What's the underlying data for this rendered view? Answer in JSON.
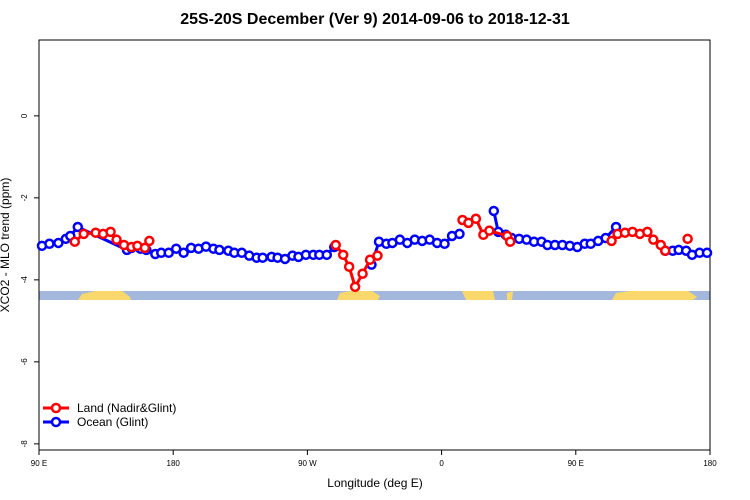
{
  "chart_data": {
    "type": "line",
    "title": "25S-20S December (Ver 9)   2014-09-06 to 2018-12-31",
    "xlabel": "Longitude (deg E)",
    "ylabel": "XCO2 - MLO trend (ppm)",
    "xlim": [
      90,
      540
    ],
    "ylim": [
      -8.15,
      1.85
    ],
    "xticks": [
      {
        "value": 90,
        "label": "90 E"
      },
      {
        "value": 180,
        "label": "180"
      },
      {
        "value": 270,
        "label": "90 W"
      },
      {
        "value": 360,
        "label": "0"
      },
      {
        "value": 450,
        "label": "90 E"
      },
      {
        "value": 540,
        "label": "180"
      }
    ],
    "yticks": [
      0,
      -2,
      -4,
      -6,
      -8
    ],
    "legend": "bottom-left",
    "series": [
      {
        "name": "Land (Nadir&Glint)",
        "color": "#ff0000",
        "x": [
          114,
          120,
          128,
          133,
          138,
          142,
          147,
          152,
          156,
          161,
          164,
          null,
          289,
          294,
          298,
          302,
          307,
          312,
          317,
          null,
          374,
          378,
          383,
          388,
          392,
          404,
          406,
          null,
          474,
          478,
          483,
          488,
          493,
          498,
          502,
          507,
          510,
          null,
          525
        ],
        "values": [
          -3.07,
          -2.88,
          -2.85,
          -2.88,
          -2.83,
          -3.02,
          -3.15,
          -3.2,
          -3.17,
          -3.22,
          -3.05,
          null,
          -3.15,
          -3.39,
          -3.68,
          -4.17,
          -3.85,
          -3.51,
          -3.41,
          null,
          -2.54,
          -2.61,
          -2.51,
          -2.9,
          -2.8,
          -2.93,
          -3.07,
          null,
          -3.05,
          -2.88,
          -2.85,
          -2.83,
          -2.88,
          -2.83,
          -3.02,
          -3.15,
          -3.29,
          null,
          -3.0
        ]
      },
      {
        "name": "Ocean (Glint)",
        "color": "#0000ff",
        "x": [
          92,
          97,
          103,
          108,
          111,
          116,
          149,
          152,
          158,
          162,
          168,
          172,
          177,
          182,
          187,
          192,
          197,
          202,
          207,
          211,
          217,
          221,
          226,
          231,
          236,
          240,
          246,
          250,
          255,
          260,
          264,
          269,
          274,
          278,
          283,
          288,
          null,
          313,
          318,
          323,
          327,
          332,
          337,
          342,
          347,
          352,
          357,
          362,
          367,
          372,
          null,
          395,
          398,
          403,
          407,
          412,
          417,
          422,
          427,
          431,
          436,
          441,
          446,
          451,
          456,
          460,
          465,
          470,
          477,
          null,
          510,
          515,
          519,
          524,
          528,
          533,
          538
        ],
        "values": [
          -3.17,
          -3.12,
          -3.1,
          -3.0,
          -2.93,
          -2.71,
          -3.27,
          -3.22,
          -3.24,
          -3.27,
          -3.37,
          -3.34,
          -3.34,
          -3.24,
          -3.34,
          -3.22,
          -3.24,
          -3.19,
          -3.24,
          -3.27,
          -3.29,
          -3.34,
          -3.34,
          -3.41,
          -3.46,
          -3.46,
          -3.44,
          -3.46,
          -3.49,
          -3.41,
          -3.44,
          -3.39,
          -3.39,
          -3.39,
          -3.39,
          -3.2,
          null,
          -3.63,
          -3.07,
          -3.12,
          -3.1,
          -3.02,
          -3.1,
          -3.02,
          -3.05,
          -3.02,
          -3.1,
          -3.12,
          -2.93,
          -2.88,
          null,
          -2.32,
          -2.83,
          -2.9,
          -2.98,
          -3.0,
          -3.02,
          -3.07,
          -3.07,
          -3.15,
          -3.15,
          -3.15,
          -3.17,
          -3.2,
          -3.12,
          -3.12,
          -3.05,
          -2.98,
          -2.71,
          null,
          -3.29,
          -3.29,
          -3.27,
          -3.29,
          -3.39,
          -3.34,
          -3.34
        ]
      }
    ]
  }
}
